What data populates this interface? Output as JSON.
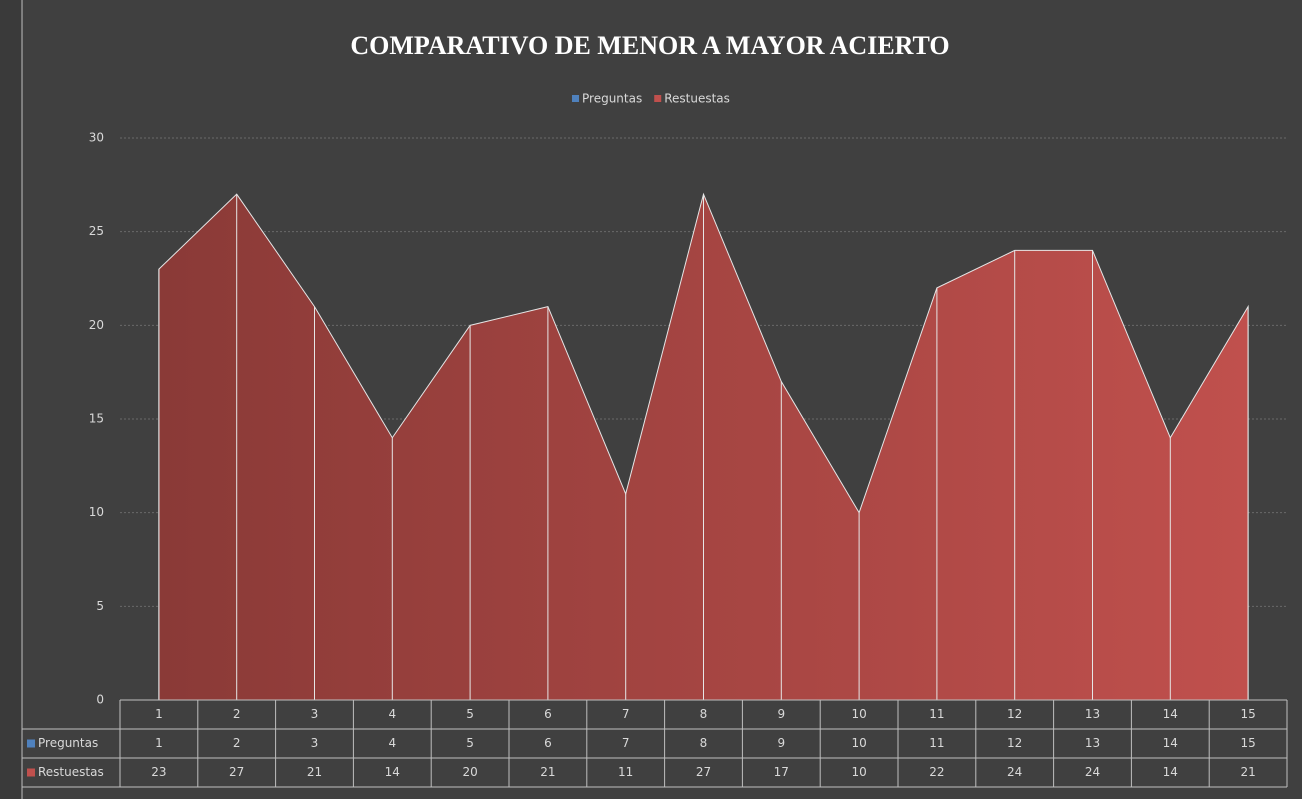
{
  "chart_data": {
    "type": "area",
    "title": "COMPARATIVO DE MENOR A MAYOR ACIERTO",
    "categories": [
      "1",
      "2",
      "3",
      "4",
      "5",
      "6",
      "7",
      "8",
      "9",
      "10",
      "11",
      "12",
      "13",
      "14",
      "15"
    ],
    "series": [
      {
        "name": "Preguntas",
        "color": "#4f81bd",
        "values": [
          1,
          2,
          3,
          4,
          5,
          6,
          7,
          8,
          9,
          10,
          11,
          12,
          13,
          14,
          15
        ]
      },
      {
        "name": "Restuestas",
        "color": "#c0504d",
        "values": [
          23,
          27,
          21,
          14,
          20,
          21,
          11,
          27,
          17,
          10,
          22,
          24,
          24,
          14,
          21
        ]
      }
    ],
    "ylim": [
      0,
      30
    ],
    "yticks": [
      0,
      5,
      10,
      15,
      20,
      25,
      30
    ],
    "grid": true,
    "legend": "top",
    "data_table": true
  }
}
